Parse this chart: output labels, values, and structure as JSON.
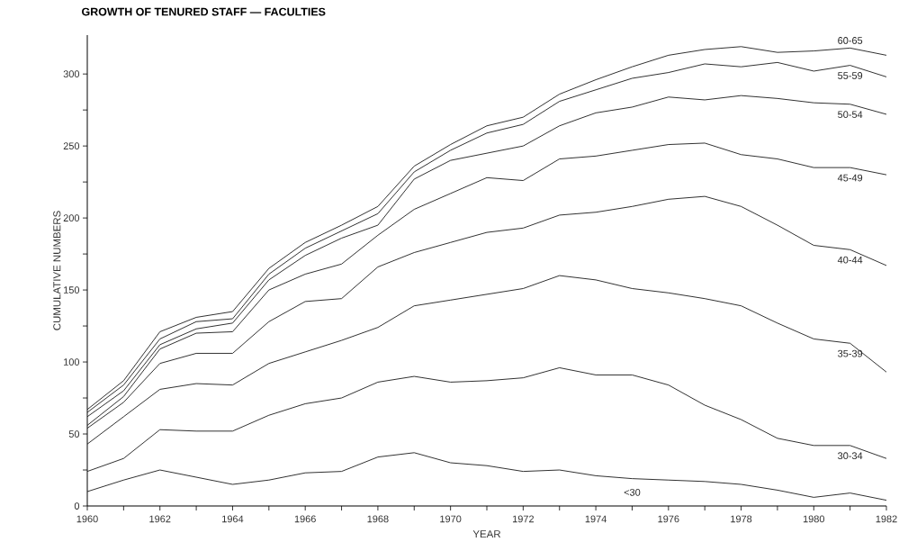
{
  "chart_data": {
    "type": "line",
    "title": "GROWTH OF TENURED STAFF — FACULTIES",
    "xlabel": "YEAR",
    "ylabel": "CUMULATIVE NUMBERS",
    "x": [
      1960,
      1961,
      1962,
      1963,
      1964,
      1965,
      1966,
      1967,
      1968,
      1969,
      1970,
      1971,
      1972,
      1973,
      1974,
      1975,
      1976,
      1977,
      1978,
      1979,
      1980,
      1981,
      1982
    ],
    "series": [
      {
        "name": "<30",
        "color": "#1a1a1a",
        "values": [
          10,
          18,
          25,
          20,
          15,
          18,
          23,
          24,
          34,
          37,
          30,
          28,
          24,
          25,
          21,
          19,
          18,
          17,
          15,
          11,
          6,
          9,
          4
        ]
      },
      {
        "name": "30-34",
        "color": "#1a1a1a",
        "values": [
          24,
          33,
          53,
          52,
          52,
          63,
          71,
          75,
          86,
          90,
          86,
          87,
          89,
          96,
          91,
          91,
          84,
          70,
          60,
          47,
          42,
          42,
          33
        ]
      },
      {
        "name": "35-39",
        "color": "#1a1a1a",
        "values": [
          43,
          62,
          81,
          85,
          84,
          99,
          107,
          115,
          124,
          139,
          143,
          147,
          151,
          160,
          157,
          151,
          148,
          144,
          139,
          127,
          116,
          113,
          93
        ]
      },
      {
        "name": "40-44",
        "color": "#1a1a1a",
        "values": [
          54,
          72,
          99,
          106,
          106,
          128,
          142,
          144,
          166,
          176,
          183,
          190,
          193,
          202,
          204,
          208,
          213,
          215,
          208,
          195,
          181,
          178,
          167
        ]
      },
      {
        "name": "45-49",
        "color": "#1a1a1a",
        "values": [
          56,
          76,
          109,
          120,
          121,
          150,
          161,
          168,
          188,
          206,
          217,
          228,
          226,
          241,
          243,
          247,
          251,
          252,
          244,
          241,
          235,
          235,
          230
        ]
      },
      {
        "name": "50-54",
        "color": "#1a1a1a",
        "values": [
          62,
          80,
          112,
          123,
          127,
          157,
          174,
          186,
          195,
          227,
          240,
          245,
          250,
          264,
          273,
          277,
          284,
          282,
          285,
          283,
          280,
          279,
          272
        ]
      },
      {
        "name": "55-59",
        "color": "#1a1a1a",
        "values": [
          65,
          84,
          116,
          128,
          130,
          161,
          179,
          191,
          203,
          232,
          247,
          259,
          265,
          281,
          289,
          297,
          301,
          307,
          305,
          308,
          302,
          306,
          298
        ]
      },
      {
        "name": "60-65",
        "color": "#1a1a1a",
        "values": [
          67,
          87,
          121,
          131,
          135,
          165,
          183,
          195,
          208,
          236,
          251,
          264,
          270,
          286,
          296,
          305,
          313,
          317,
          319,
          315,
          316,
          318,
          313
        ]
      }
    ],
    "xlim": [
      1960,
      1982
    ],
    "xticks": [
      1960,
      {
        "value": 1961,
        "label": null
      },
      1962,
      {
        "value": 1963,
        "label": null
      },
      1964,
      {
        "value": 1965,
        "label": null
      },
      1966,
      {
        "value": 1967,
        "label": null
      },
      1968,
      {
        "value": 1969,
        "label": null
      },
      1970,
      {
        "value": 1971,
        "label": null
      },
      1972,
      {
        "value": 1973,
        "label": null
      },
      1974,
      {
        "value": 1975,
        "label": null
      },
      1976,
      {
        "value": 1977,
        "label": null
      },
      1978,
      {
        "value": 1979,
        "label": null
      },
      1980,
      {
        "value": 1981,
        "label": null
      },
      1982
    ],
    "ylim": [
      0,
      327
    ],
    "yticks": [
      0,
      {
        "value": 25,
        "label": null
      },
      50,
      {
        "value": 75,
        "label": null
      },
      100,
      {
        "value": 125,
        "label": null
      },
      150,
      {
        "value": 175,
        "label": null
      },
      200,
      {
        "value": 225,
        "label": null
      },
      250,
      {
        "value": 275,
        "label": null
      },
      300
    ],
    "grid": false,
    "legend": false
  }
}
